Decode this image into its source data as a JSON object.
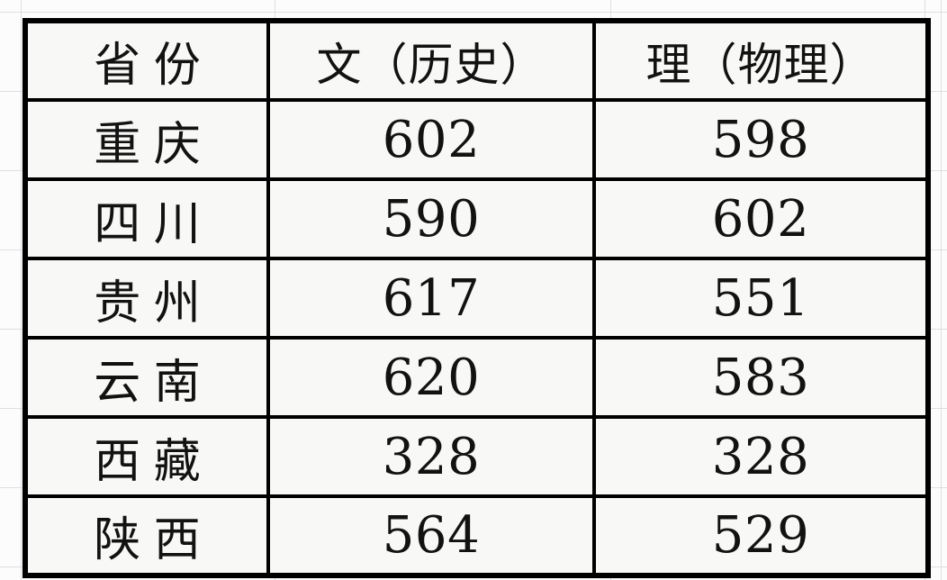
{
  "chart_data": {
    "type": "table",
    "title": "",
    "columns": [
      "省份",
      "文（历史）",
      "理（物理）"
    ],
    "rows": [
      [
        "重庆",
        "602",
        "598"
      ],
      [
        "四川",
        "590",
        "602"
      ],
      [
        "贵州",
        "617",
        "551"
      ],
      [
        "云南",
        "620",
        "583"
      ],
      [
        "西藏",
        "328",
        "328"
      ],
      [
        "陕西",
        "564",
        "529"
      ]
    ],
    "layout_hints": {
      "header_row": true,
      "all_cells_centered": true,
      "outer_border": "thick-black",
      "inner_border": "thick-black",
      "background_grid": "faint spreadsheet gridlines in margins"
    }
  },
  "colors": {
    "border-color": "#000000",
    "cell-bg": "#f8f8f6",
    "margin-bg": "#fcfcfc",
    "gridline": "#dcdfe2",
    "text-color": "#121212"
  }
}
